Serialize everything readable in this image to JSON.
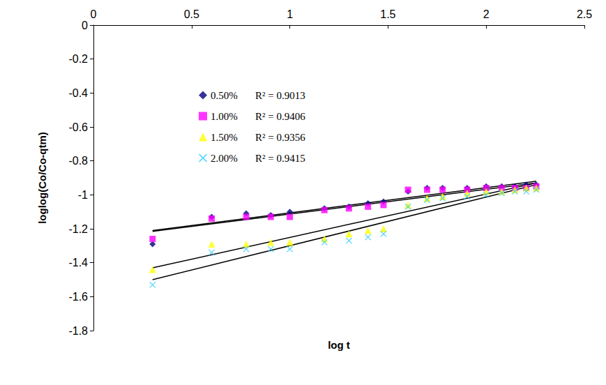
{
  "chart_data": {
    "type": "scatter",
    "x_label": "log t",
    "y_label": "loglog(Co/Co-qtm)",
    "xlim": [
      0,
      2.5
    ],
    "xticks": [
      0,
      0.5,
      1,
      1.5,
      2,
      2.5
    ],
    "ylim": [
      -1.8,
      0
    ],
    "yticks": [
      -1.8,
      -1.6,
      -1.4,
      -1.2,
      -1,
      -0.8,
      -0.6,
      -0.4,
      -0.2,
      0
    ],
    "grid": false,
    "legend": "top-left",
    "x": [
      0.301,
      0.602,
      0.778,
      0.903,
      1.0,
      1.176,
      1.301,
      1.398,
      1.477,
      1.602,
      1.699,
      1.778,
      1.903,
      2.0,
      2.079,
      2.146,
      2.204,
      2.255
    ],
    "series": [
      {
        "name": "0.50%",
        "annotation": "R² = 0.9013",
        "color": "#000080",
        "marker": "diamond",
        "values": [
          -1.29,
          -1.13,
          -1.11,
          -1.12,
          -1.1,
          -1.08,
          -1.07,
          -1.05,
          -1.04,
          -0.98,
          -0.96,
          -0.96,
          -0.96,
          -0.95,
          -0.95,
          -0.95,
          -0.94,
          -0.94
        ],
        "trend": [
          [
            0.301,
            -1.21
          ],
          [
            2.255,
            -0.92
          ]
        ]
      },
      {
        "name": "1.00%",
        "annotation": "R² = 0.9406",
        "color": "#FF00FF",
        "marker": "square",
        "values": [
          -1.26,
          -1.14,
          -1.13,
          -1.13,
          -1.13,
          -1.09,
          -1.08,
          -1.07,
          -1.06,
          -0.97,
          -0.97,
          -0.97,
          -0.97,
          -0.96,
          -0.96,
          -0.96,
          -0.96,
          -0.95
        ],
        "trend": [
          [
            0.301,
            -1.215
          ],
          [
            2.255,
            -0.93
          ]
        ]
      },
      {
        "name": "1.50%",
        "annotation": "R² = 0.9356",
        "color": "#FFFF00",
        "marker": "triangle",
        "values": [
          -1.44,
          -1.29,
          -1.29,
          -1.28,
          -1.28,
          -1.26,
          -1.23,
          -1.21,
          -1.2,
          -1.06,
          -1.02,
          -1.01,
          -0.99,
          -0.98,
          -0.98,
          -0.97,
          -0.96,
          -0.96
        ],
        "trend": [
          [
            0.301,
            -1.43
          ],
          [
            2.255,
            -0.93
          ]
        ]
      },
      {
        "name": "2.00%",
        "annotation": "R² = 0.9415",
        "color": "#33CCFF",
        "marker": "x",
        "values": [
          -1.53,
          -1.34,
          -1.32,
          -1.32,
          -1.32,
          -1.28,
          -1.27,
          -1.25,
          -1.23,
          -1.07,
          -1.03,
          -1.02,
          -1.01,
          -1.0,
          -0.99,
          -0.98,
          -0.98,
          -0.97
        ],
        "trend": [
          [
            0.301,
            -1.5
          ],
          [
            2.255,
            -0.94
          ]
        ]
      }
    ]
  }
}
